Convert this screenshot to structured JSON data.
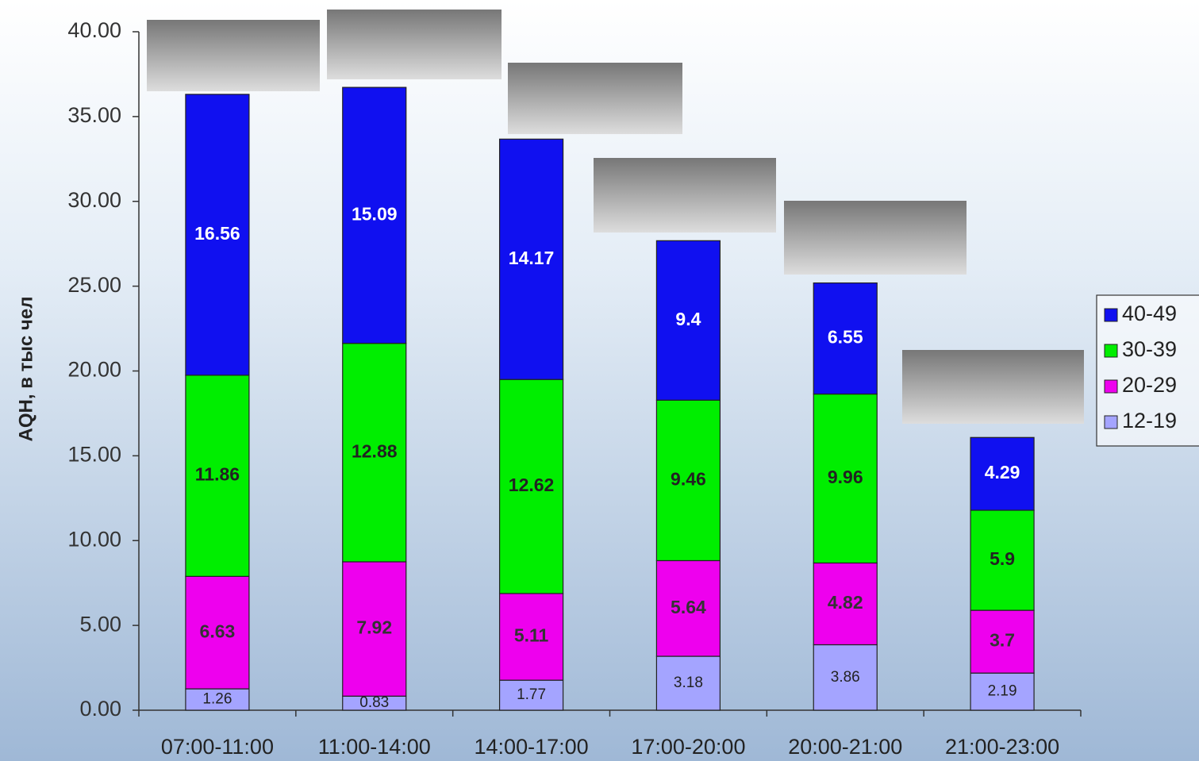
{
  "chart_data": {
    "type": "stacked_bar",
    "y_label": "AQH, в тыс чел",
    "categories": [
      "07:00-11:00",
      "11:00-14:00",
      "14:00-17:00",
      "17:00-20:00",
      "20:00-21:00",
      "21:00-23:00"
    ],
    "series": [
      {
        "name": "12-19",
        "color": "#a4a4ff",
        "values": [
          1.26,
          0.83,
          1.77,
          3.18,
          3.86,
          2.19
        ]
      },
      {
        "name": "20-29",
        "color": "#ee00ee",
        "values": [
          6.63,
          7.92,
          5.11,
          5.64,
          4.82,
          3.7
        ]
      },
      {
        "name": "30-39",
        "color": "#00ee00",
        "values": [
          11.86,
          12.88,
          12.62,
          9.46,
          9.96,
          5.9
        ]
      },
      {
        "name": "40-49",
        "color": "#1010f0",
        "values": [
          16.56,
          15.09,
          14.17,
          9.4,
          6.55,
          4.29
        ]
      }
    ],
    "ylim": [
      0,
      40
    ],
    "yticks": [
      {
        "value": 0,
        "label": "0.00"
      },
      {
        "value": 5,
        "label": "5.00"
      },
      {
        "value": 10,
        "label": "10.00"
      },
      {
        "value": 15,
        "label": "15.00"
      },
      {
        "value": 20,
        "label": "20.00"
      },
      {
        "value": 25,
        "label": "25.00"
      },
      {
        "value": 30,
        "label": "30.00"
      },
      {
        "value": 35,
        "label": "35.00"
      },
      {
        "value": 40,
        "label": "40.00"
      }
    ],
    "legend": "right"
  }
}
